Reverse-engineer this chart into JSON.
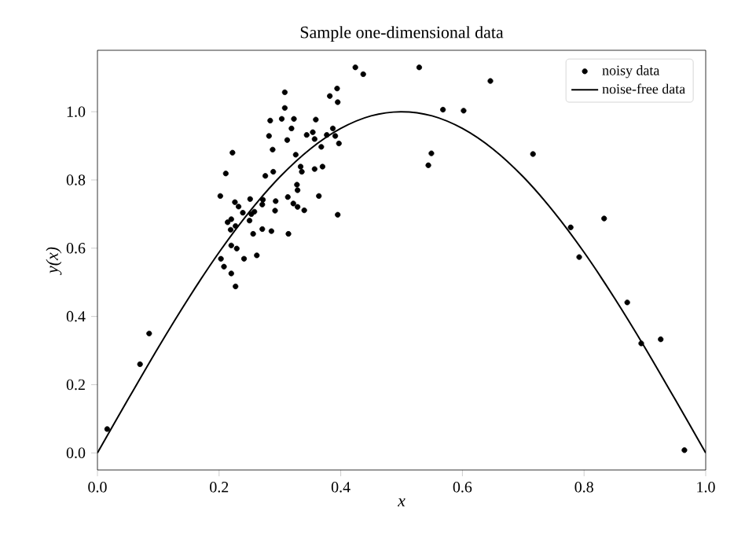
{
  "chart_data": {
    "type": "scatter",
    "title": "Sample one-dimensional data",
    "xlabel": "x",
    "ylabel": "y(x)",
    "xlim": [
      0,
      1
    ],
    "ylim": [
      -0.05,
      1.18
    ],
    "xticks": [
      {
        "value": 0,
        "label": "0.0"
      },
      {
        "value": 0.2,
        "label": "0.2"
      },
      {
        "value": 0.4,
        "label": "0.4"
      },
      {
        "value": 0.6,
        "label": "0.6"
      },
      {
        "value": 0.8,
        "label": "0.8"
      },
      {
        "value": 1,
        "label": "1.0"
      }
    ],
    "yticks": [
      {
        "value": 0,
        "label": "0.0"
      },
      {
        "value": 0.2,
        "label": "0.2"
      },
      {
        "value": 0.4,
        "label": "0.4"
      },
      {
        "value": 0.6,
        "label": "0.6"
      },
      {
        "value": 0.8,
        "label": "0.8"
      },
      {
        "value": 1,
        "label": "1.0"
      }
    ],
    "legend": "top right",
    "grid": false,
    "series": [
      {
        "name": "noisy data",
        "type": "scatter",
        "marker": "circle",
        "color": "#000000",
        "x": [
          0.016,
          0.07,
          0.085,
          0.424,
          0.437,
          0.529,
          0.646,
          0.568,
          0.602,
          0.549,
          0.544,
          0.716,
          0.833,
          0.778,
          0.792,
          0.871,
          0.894,
          0.926,
          0.965,
          0.394,
          0.382,
          0.395,
          0.308,
          0.308,
          0.284,
          0.303,
          0.323,
          0.319,
          0.359,
          0.282,
          0.312,
          0.344,
          0.354,
          0.357,
          0.377,
          0.387,
          0.391,
          0.397,
          0.368,
          0.222,
          0.288,
          0.326,
          0.211,
          0.276,
          0.289,
          0.334,
          0.336,
          0.357,
          0.37,
          0.328,
          0.329,
          0.202,
          0.226,
          0.251,
          0.272,
          0.293,
          0.313,
          0.364,
          0.322,
          0.329,
          0.34,
          0.232,
          0.239,
          0.253,
          0.258,
          0.292,
          0.214,
          0.22,
          0.227,
          0.25,
          0.271,
          0.395,
          0.219,
          0.256,
          0.271,
          0.286,
          0.314,
          0.22,
          0.229,
          0.241,
          0.262,
          0.203,
          0.208,
          0.22,
          0.227
        ],
        "values": [
          0.07,
          0.26,
          0.35,
          1.13,
          1.11,
          1.13,
          1.09,
          1.006,
          1.003,
          0.878,
          0.843,
          0.876,
          0.687,
          0.661,
          0.574,
          0.441,
          0.321,
          0.333,
          0.008,
          1.068,
          1.046,
          1.028,
          1.057,
          1.011,
          0.974,
          0.979,
          0.979,
          0.951,
          0.977,
          0.929,
          0.917,
          0.932,
          0.94,
          0.92,
          0.932,
          0.951,
          0.929,
          0.907,
          0.897,
          0.88,
          0.889,
          0.874,
          0.819,
          0.812,
          0.824,
          0.839,
          0.824,
          0.832,
          0.839,
          0.786,
          0.77,
          0.753,
          0.735,
          0.744,
          0.742,
          0.738,
          0.75,
          0.753,
          0.731,
          0.721,
          0.711,
          0.722,
          0.704,
          0.7,
          0.707,
          0.71,
          0.676,
          0.685,
          0.665,
          0.681,
          0.728,
          0.698,
          0.654,
          0.642,
          0.656,
          0.65,
          0.642,
          0.608,
          0.599,
          0.569,
          0.579,
          0.569,
          0.546,
          0.526,
          0.488
        ]
      },
      {
        "name": "noise-free data",
        "type": "line",
        "marker": "none",
        "line_style": "solid",
        "color": "#000000",
        "x": [
          0,
          0.05,
          0.1,
          0.15,
          0.2,
          0.25,
          0.3,
          0.35,
          0.4,
          0.45,
          0.5,
          0.55,
          0.6,
          0.65,
          0.7,
          0.75,
          0.8,
          0.85,
          0.9,
          0.95,
          1
        ],
        "values": [
          0,
          0.156,
          0.309,
          0.454,
          0.588,
          0.707,
          0.809,
          0.891,
          0.951,
          0.988,
          1,
          0.988,
          0.951,
          0.891,
          0.809,
          0.707,
          0.588,
          0.454,
          0.309,
          0.156,
          0
        ]
      }
    ]
  }
}
